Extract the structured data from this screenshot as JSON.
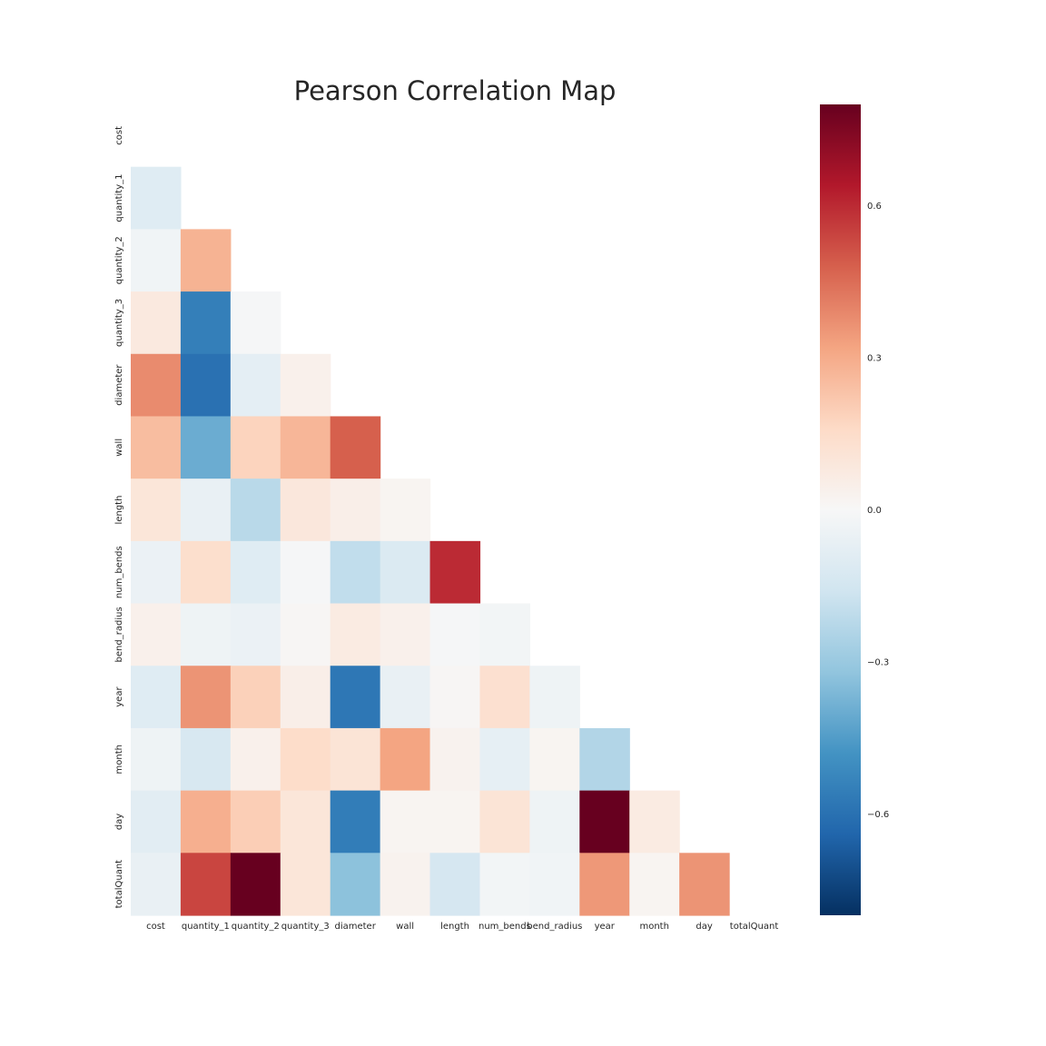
{
  "chart_data": {
    "type": "heatmap",
    "title": "Pearson Correlation Map",
    "labels": [
      "cost",
      "quantity_1",
      "quantity_2",
      "quantity_3",
      "diameter",
      "wall",
      "length",
      "num_bends",
      "bend_radius",
      "year",
      "month",
      "day",
      "totalQuant"
    ],
    "mask": "upper-triangle-including-diagonal",
    "colormap": "RdBu_r",
    "vmin": -0.8,
    "vmax": 0.8,
    "colorbar_ticks": [
      0.6,
      0.3,
      0.0,
      -0.3,
      -0.6
    ],
    "colorbar_tick_labels": [
      "0.6",
      "0.3",
      "0.0",
      "−0.3",
      "−0.6"
    ],
    "matrix": [
      [
        null,
        null,
        null,
        null,
        null,
        null,
        null,
        null,
        null,
        null,
        null,
        null,
        null
      ],
      [
        -0.1,
        null,
        null,
        null,
        null,
        null,
        null,
        null,
        null,
        null,
        null,
        null,
        null
      ],
      [
        -0.03,
        0.28,
        null,
        null,
        null,
        null,
        null,
        null,
        null,
        null,
        null,
        null,
        null
      ],
      [
        0.08,
        -0.55,
        -0.01,
        null,
        null,
        null,
        null,
        null,
        null,
        null,
        null,
        null,
        null
      ],
      [
        0.38,
        -0.6,
        -0.08,
        0.04,
        null,
        null,
        null,
        null,
        null,
        null,
        null,
        null,
        null
      ],
      [
        0.25,
        -0.4,
        0.18,
        0.27,
        0.48,
        null,
        null,
        null,
        null,
        null,
        null,
        null,
        null
      ],
      [
        0.1,
        -0.06,
        -0.22,
        0.09,
        0.05,
        0.02,
        null,
        null,
        null,
        null,
        null,
        null,
        null
      ],
      [
        -0.05,
        0.14,
        -0.1,
        -0.01,
        -0.2,
        -0.12,
        0.6,
        null,
        null,
        null,
        null,
        null,
        null
      ],
      [
        0.04,
        -0.04,
        -0.05,
        0.01,
        0.07,
        0.04,
        -0.01,
        -0.02,
        null,
        null,
        null,
        null,
        null
      ],
      [
        -0.1,
        0.36,
        0.19,
        0.05,
        -0.58,
        -0.06,
        0.01,
        0.13,
        -0.04,
        null,
        null,
        null,
        null
      ],
      [
        -0.04,
        -0.13,
        0.04,
        0.15,
        0.11,
        0.32,
        0.03,
        -0.07,
        0.02,
        -0.24,
        null,
        null,
        null
      ],
      [
        -0.09,
        0.29,
        0.2,
        0.1,
        -0.56,
        0.02,
        0.02,
        0.11,
        -0.04,
        0.8,
        0.07,
        null,
        null
      ],
      [
        -0.06,
        0.54,
        0.8,
        0.1,
        -0.33,
        0.03,
        -0.14,
        -0.02,
        -0.03,
        0.35,
        0.02,
        0.36,
        null
      ]
    ]
  }
}
